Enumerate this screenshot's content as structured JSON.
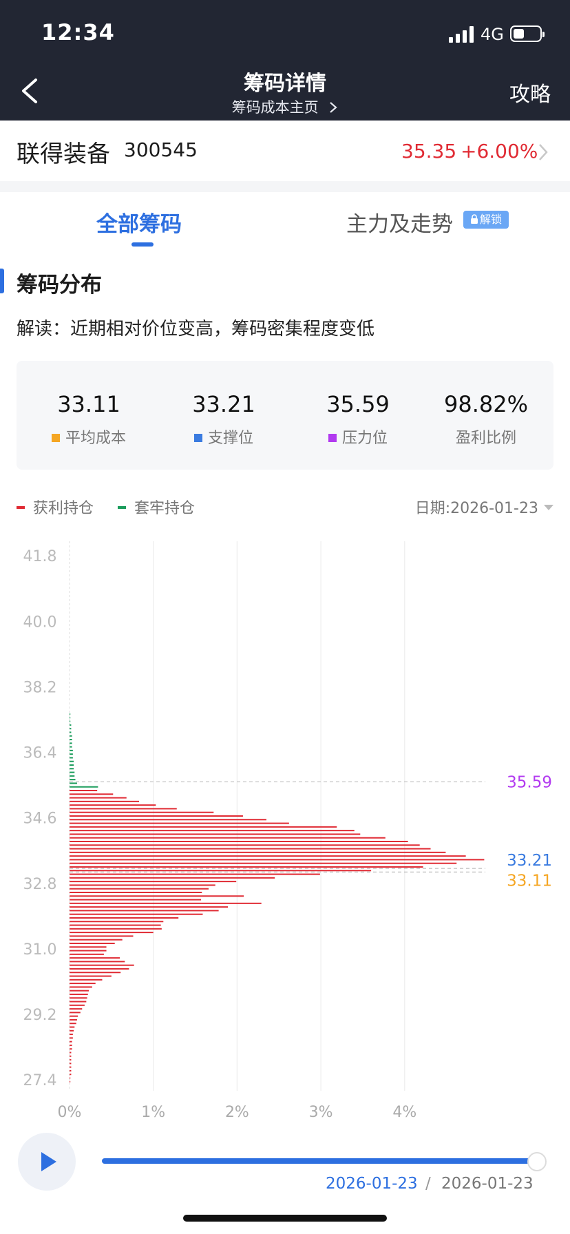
{
  "status_bar": {
    "time": "12:34",
    "network": "4G"
  },
  "nav": {
    "title": "筹码详情",
    "subtitle": "筹码成本主页",
    "right_action": "攻略"
  },
  "stock": {
    "name": "联得装备",
    "code": "300545",
    "price": "35.35",
    "change": "+6.00%"
  },
  "tabs": [
    {
      "label": "全部筹码",
      "active": true
    },
    {
      "label": "主力及走势",
      "badge": "解锁"
    }
  ],
  "section": {
    "title": "筹码分布",
    "interpretation": "解读：近期相对价位变高，筹码密集程度变低"
  },
  "stats": [
    {
      "value": "33.11",
      "label": "平均成本",
      "color": "#f5a623"
    },
    {
      "value": "33.21",
      "label": "支撑位",
      "color": "#3a7be0"
    },
    {
      "value": "35.59",
      "label": "压力位",
      "color": "#b23af0"
    },
    {
      "value": "98.82%",
      "label": "盈利比例"
    }
  ],
  "legend": [
    {
      "label": "获利持仓",
      "color": "#e02a33"
    },
    {
      "label": "套牢持仓",
      "color": "#1a9c5b"
    }
  ],
  "date_selector": "日期:2026-01-23",
  "chart_data": {
    "type": "bar",
    "orientation": "horizontal",
    "y_ticks": [
      "41.8",
      "40.0",
      "38.2",
      "36.4",
      "34.6",
      "32.8",
      "31.0",
      "29.2",
      "27.4"
    ],
    "x_ticks": [
      "0%",
      "1%",
      "2%",
      "3%",
      "4%"
    ],
    "ylim": [
      27.1,
      42.2
    ],
    "xlim": [
      0,
      5.0
    ],
    "series": [
      {
        "name": "获利持仓",
        "color": "#e02a33",
        "price": [
          35.35,
          35.25,
          35.15,
          35.05,
          34.95,
          34.85,
          34.75,
          34.65,
          34.55,
          34.45,
          34.35,
          34.25,
          34.15,
          34.05,
          33.95,
          33.85,
          33.75,
          33.65,
          33.55,
          33.45,
          33.35,
          33.25,
          33.15,
          33.05,
          32.95,
          32.85,
          32.75,
          32.65,
          32.55,
          32.45,
          32.35,
          32.25,
          32.15,
          32.05,
          31.95,
          31.85,
          31.75,
          31.65,
          31.55,
          31.45,
          31.35,
          31.25,
          31.15,
          31.05,
          30.95,
          30.85,
          30.75,
          30.65,
          30.55,
          30.45,
          30.35,
          30.25,
          30.15,
          30.05,
          29.95,
          29.85,
          29.75,
          29.65,
          29.55,
          29.45,
          29.35,
          29.25,
          29.15,
          29.05,
          28.95,
          28.85,
          28.75,
          28.65,
          28.55,
          28.45,
          28.35,
          28.25,
          28.15,
          28.05,
          27.95,
          27.85,
          27.75,
          27.65,
          27.55,
          27.45,
          27.35
        ],
        "percent": [
          0.33,
          0.52,
          0.68,
          0.83,
          1.03,
          1.28,
          1.72,
          2.07,
          2.35,
          2.62,
          3.19,
          3.4,
          3.47,
          3.77,
          4.04,
          4.18,
          4.31,
          4.49,
          4.73,
          4.95,
          4.62,
          4.22,
          3.6,
          2.99,
          2.45,
          1.99,
          1.74,
          1.66,
          1.58,
          2.08,
          1.57,
          2.29,
          1.89,
          1.78,
          1.59,
          1.3,
          1.12,
          1.09,
          1.1,
          1.0,
          0.76,
          0.63,
          0.54,
          0.44,
          0.44,
          0.41,
          0.6,
          0.66,
          0.77,
          0.71,
          0.61,
          0.5,
          0.39,
          0.31,
          0.27,
          0.23,
          0.22,
          0.21,
          0.2,
          0.18,
          0.15,
          0.13,
          0.1,
          0.09,
          0.08,
          0.06,
          0.05,
          0.04,
          0.04,
          0.03,
          0.03,
          0.03,
          0.02,
          0.02,
          0.02,
          0.02,
          0.02,
          0.02,
          0.02,
          0.01,
          0.01
        ]
      },
      {
        "name": "套牢持仓",
        "color": "#1a9c5b",
        "price": [
          37.45,
          37.35,
          37.25,
          37.15,
          37.05,
          36.95,
          36.85,
          36.75,
          36.65,
          36.55,
          36.45,
          36.35,
          36.25,
          36.15,
          36.05,
          35.95,
          35.85,
          35.75,
          35.65,
          35.55,
          35.45
        ],
        "percent": [
          0.01,
          0.01,
          0.01,
          0.02,
          0.02,
          0.02,
          0.03,
          0.03,
          0.03,
          0.03,
          0.04,
          0.04,
          0.04,
          0.05,
          0.05,
          0.05,
          0.06,
          0.06,
          0.07,
          0.09,
          0.34
        ]
      }
    ],
    "reference_lines": [
      {
        "value": 35.59,
        "label": "35.59",
        "color": "#b23af0"
      },
      {
        "value": 33.21,
        "label": "33.21",
        "color": "#3a7be0"
      },
      {
        "value": 33.11,
        "label": "33.11",
        "color": "#f5a623"
      }
    ]
  },
  "playback": {
    "current_date": "2026-01-23",
    "separator": "/",
    "end_date": "2026-01-23",
    "progress": 1.0
  }
}
